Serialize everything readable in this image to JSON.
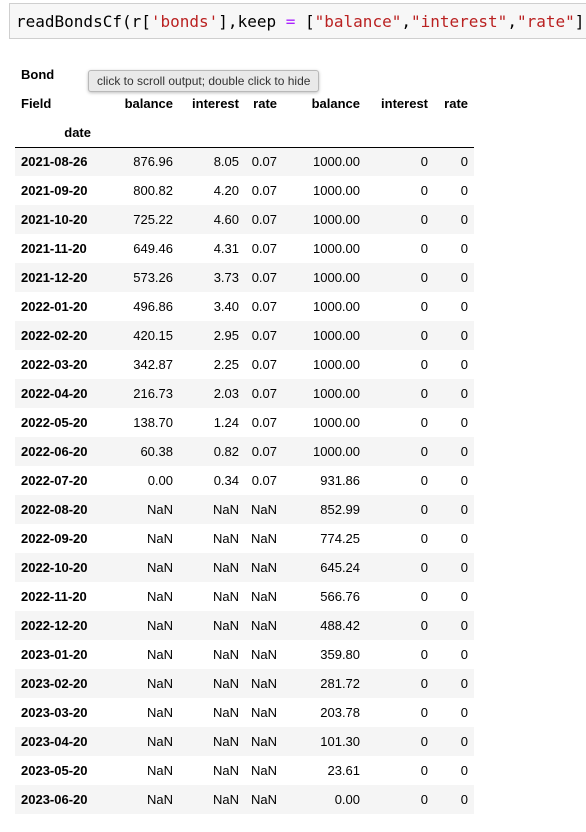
{
  "code": {
    "tokens": [
      {
        "text": "readBondsCf(r[",
        "kind": "default"
      },
      {
        "text": "'bonds'",
        "kind": "string"
      },
      {
        "text": "],keep ",
        "kind": "default"
      },
      {
        "text": "=",
        "kind": "op"
      },
      {
        "text": " [",
        "kind": "default"
      },
      {
        "text": "\"balance\"",
        "kind": "string"
      },
      {
        "text": ",",
        "kind": "default"
      },
      {
        "text": "\"interest\"",
        "kind": "string"
      },
      {
        "text": ",",
        "kind": "default"
      },
      {
        "text": "\"rate\"",
        "kind": "string"
      },
      {
        "text": "])",
        "kind": "default"
      }
    ]
  },
  "tooltip": {
    "text": "click to scroll output; double click to hide"
  },
  "table": {
    "header": {
      "bond_label": "Bond",
      "field_label": "Field",
      "fields": [
        "balance",
        "interest",
        "rate",
        "balance",
        "interest",
        "rate"
      ],
      "index_name": "date"
    },
    "rows": [
      {
        "date": "2021-08-26",
        "cells": [
          "876.96",
          "8.05",
          "0.07",
          "1000.00",
          "0",
          "0"
        ]
      },
      {
        "date": "2021-09-20",
        "cells": [
          "800.82",
          "4.20",
          "0.07",
          "1000.00",
          "0",
          "0"
        ]
      },
      {
        "date": "2021-10-20",
        "cells": [
          "725.22",
          "4.60",
          "0.07",
          "1000.00",
          "0",
          "0"
        ]
      },
      {
        "date": "2021-11-20",
        "cells": [
          "649.46",
          "4.31",
          "0.07",
          "1000.00",
          "0",
          "0"
        ]
      },
      {
        "date": "2021-12-20",
        "cells": [
          "573.26",
          "3.73",
          "0.07",
          "1000.00",
          "0",
          "0"
        ]
      },
      {
        "date": "2022-01-20",
        "cells": [
          "496.86",
          "3.40",
          "0.07",
          "1000.00",
          "0",
          "0"
        ]
      },
      {
        "date": "2022-02-20",
        "cells": [
          "420.15",
          "2.95",
          "0.07",
          "1000.00",
          "0",
          "0"
        ]
      },
      {
        "date": "2022-03-20",
        "cells": [
          "342.87",
          "2.25",
          "0.07",
          "1000.00",
          "0",
          "0"
        ]
      },
      {
        "date": "2022-04-20",
        "cells": [
          "216.73",
          "2.03",
          "0.07",
          "1000.00",
          "0",
          "0"
        ]
      },
      {
        "date": "2022-05-20",
        "cells": [
          "138.70",
          "1.24",
          "0.07",
          "1000.00",
          "0",
          "0"
        ]
      },
      {
        "date": "2022-06-20",
        "cells": [
          "60.38",
          "0.82",
          "0.07",
          "1000.00",
          "0",
          "0"
        ]
      },
      {
        "date": "2022-07-20",
        "cells": [
          "0.00",
          "0.34",
          "0.07",
          "931.86",
          "0",
          "0"
        ]
      },
      {
        "date": "2022-08-20",
        "cells": [
          "NaN",
          "NaN",
          "NaN",
          "852.99",
          "0",
          "0"
        ]
      },
      {
        "date": "2022-09-20",
        "cells": [
          "NaN",
          "NaN",
          "NaN",
          "774.25",
          "0",
          "0"
        ]
      },
      {
        "date": "2022-10-20",
        "cells": [
          "NaN",
          "NaN",
          "NaN",
          "645.24",
          "0",
          "0"
        ]
      },
      {
        "date": "2022-11-20",
        "cells": [
          "NaN",
          "NaN",
          "NaN",
          "566.76",
          "0",
          "0"
        ]
      },
      {
        "date": "2022-12-20",
        "cells": [
          "NaN",
          "NaN",
          "NaN",
          "488.42",
          "0",
          "0"
        ]
      },
      {
        "date": "2023-01-20",
        "cells": [
          "NaN",
          "NaN",
          "NaN",
          "359.80",
          "0",
          "0"
        ]
      },
      {
        "date": "2023-02-20",
        "cells": [
          "NaN",
          "NaN",
          "NaN",
          "281.72",
          "0",
          "0"
        ]
      },
      {
        "date": "2023-03-20",
        "cells": [
          "NaN",
          "NaN",
          "NaN",
          "203.78",
          "0",
          "0"
        ]
      },
      {
        "date": "2023-04-20",
        "cells": [
          "NaN",
          "NaN",
          "NaN",
          "101.30",
          "0",
          "0"
        ]
      },
      {
        "date": "2023-05-20",
        "cells": [
          "NaN",
          "NaN",
          "NaN",
          "23.61",
          "0",
          "0"
        ]
      },
      {
        "date": "2023-06-20",
        "cells": [
          "NaN",
          "NaN",
          "NaN",
          "0.00",
          "0",
          "0"
        ]
      }
    ]
  }
}
